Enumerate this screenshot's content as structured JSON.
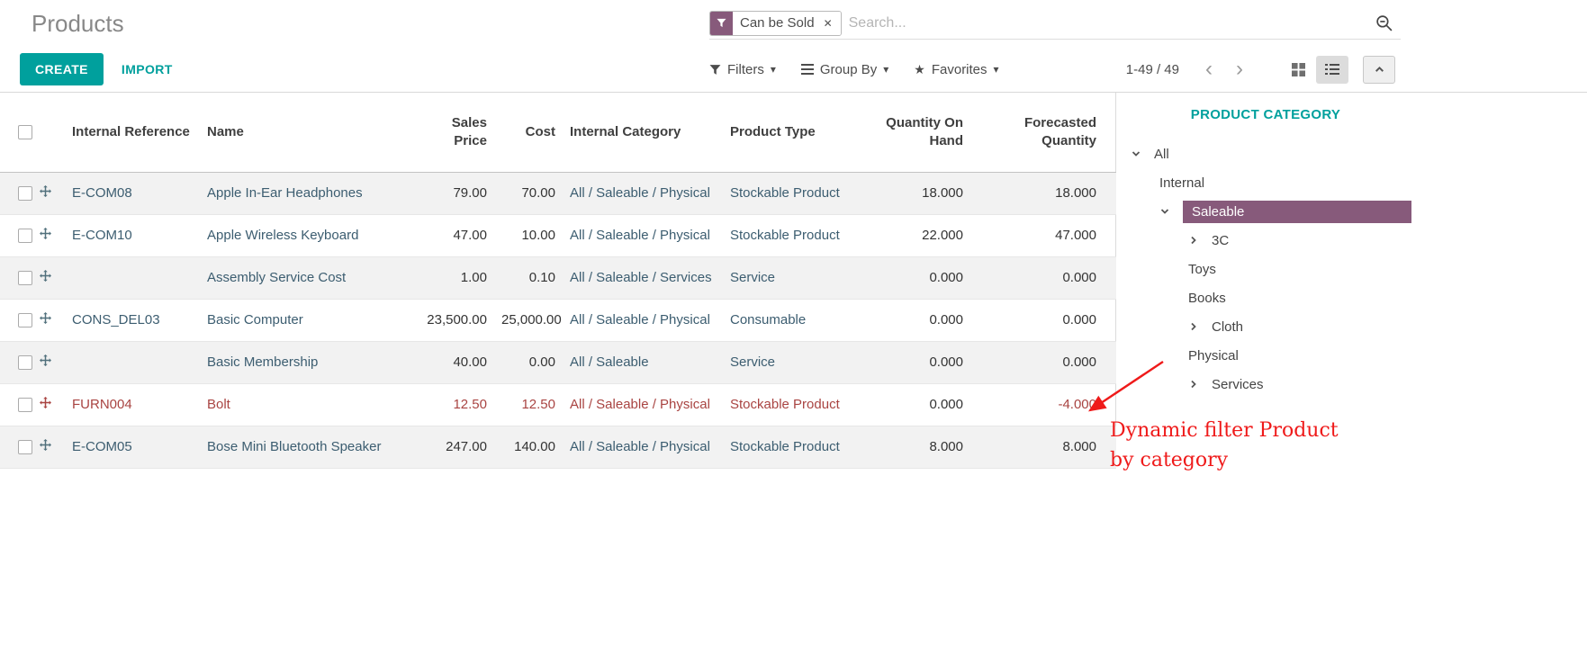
{
  "page_title": "Products",
  "search": {
    "facet_label": "Can be Sold",
    "facet_remove": "✕",
    "placeholder": "Search..."
  },
  "toolbar": {
    "create_label": "CREATE",
    "import_label": "IMPORT",
    "filters_label": "Filters",
    "group_by_label": "Group By",
    "favorites_label": "Favorites",
    "pager": "1-49 / 49"
  },
  "table": {
    "columns": [
      "Internal Reference",
      "Name",
      "Sales Price",
      "Cost",
      "Internal Category",
      "Product Type",
      "Quantity On Hand",
      "Forecasted Quantity"
    ],
    "rows": [
      {
        "ref": "E-COM08",
        "name": "Apple In-Ear Headphones",
        "price": "79.00",
        "cost": "70.00",
        "category": "All / Saleable / Physical",
        "type": "Stockable Product",
        "qty": "18.000",
        "forecast": "18.000",
        "danger": false
      },
      {
        "ref": "E-COM10",
        "name": "Apple Wireless Keyboard",
        "price": "47.00",
        "cost": "10.00",
        "category": "All / Saleable / Physical",
        "type": "Stockable Product",
        "qty": "22.000",
        "forecast": "47.000",
        "danger": false
      },
      {
        "ref": "",
        "name": "Assembly Service Cost",
        "price": "1.00",
        "cost": "0.10",
        "category": "All / Saleable / Services",
        "type": "Service",
        "qty": "0.000",
        "forecast": "0.000",
        "danger": false
      },
      {
        "ref": "CONS_DEL03",
        "name": "Basic Computer",
        "price": "23,500.00",
        "cost": "25,000.00",
        "category": "All / Saleable / Physical",
        "type": "Consumable",
        "qty": "0.000",
        "forecast": "0.000",
        "danger": false
      },
      {
        "ref": "",
        "name": "Basic Membership",
        "price": "40.00",
        "cost": "0.00",
        "category": "All / Saleable",
        "type": "Service",
        "qty": "0.000",
        "forecast": "0.000",
        "danger": false
      },
      {
        "ref": "FURN004",
        "name": "Bolt",
        "price": "12.50",
        "cost": "12.50",
        "category": "All / Saleable / Physical",
        "type": "Stockable Product",
        "qty": "0.000",
        "forecast": "-4.000",
        "danger": true
      },
      {
        "ref": "E-COM05",
        "name": "Bose Mini Bluetooth Speaker",
        "price": "247.00",
        "cost": "140.00",
        "category": "All / Saleable / Physical",
        "type": "Stockable Product",
        "qty": "8.000",
        "forecast": "8.000",
        "danger": false
      }
    ]
  },
  "sidebar": {
    "title": "PRODUCT CATEGORY",
    "items": [
      {
        "label": "All",
        "level": 0,
        "caret": "down",
        "selected": false
      },
      {
        "label": "Internal",
        "level": 1,
        "caret": "none",
        "selected": false
      },
      {
        "label": "Saleable",
        "level": 1,
        "caret": "down",
        "selected": true
      },
      {
        "label": "3C",
        "level": 2,
        "caret": "right",
        "selected": false
      },
      {
        "label": "Toys",
        "level": 2,
        "caret": "none",
        "selected": false
      },
      {
        "label": "Books",
        "level": 2,
        "caret": "none",
        "selected": false
      },
      {
        "label": "Cloth",
        "level": 2,
        "caret": "right",
        "selected": false
      },
      {
        "label": "Physical",
        "level": 2,
        "caret": "none",
        "selected": false
      },
      {
        "label": "Services",
        "level": 2,
        "caret": "right",
        "selected": false
      }
    ]
  },
  "annotation": {
    "line1": "Dynamic filter Product",
    "line2": "by category"
  },
  "colors": {
    "accent": "#00a09d",
    "selected_bg": "#875a7b",
    "danger_text": "#a94442",
    "annotation_red": "#ef1a1a"
  }
}
